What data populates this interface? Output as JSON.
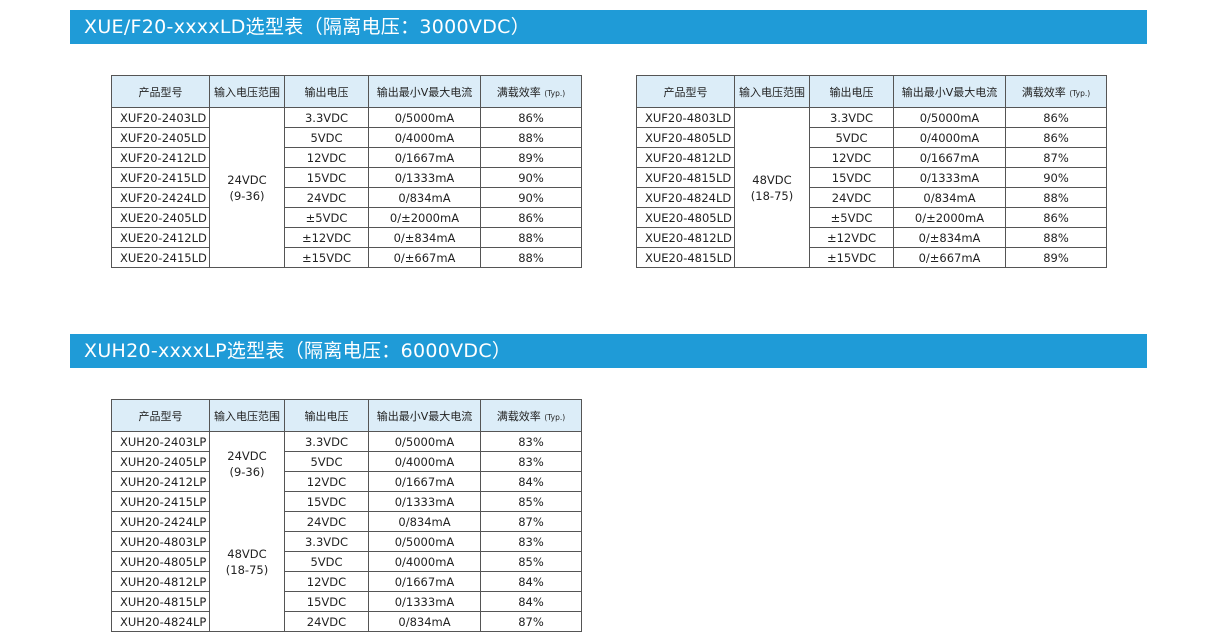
{
  "sections": [
    {
      "title": "XUE/F20-xxxxLD选型表（隔离电压：3000VDC）"
    },
    {
      "title": "XUH20-xxxxLP选型表（隔离电压：6000VDC）"
    }
  ],
  "headers": [
    "产品型号",
    "输入电压范围",
    "输出电压",
    "输出最小V最大电流",
    "满载效率",
    "(Typ.)"
  ],
  "tables": [
    {
      "groups": [
        {
          "vin": "24VDC\n(9-36)",
          "rows": [
            [
              "XUF20-2403LD",
              "3.3VDC",
              "0/5000mA",
              "86%"
            ],
            [
              "XUF20-2405LD",
              "5VDC",
              "0/4000mA",
              "88%"
            ],
            [
              "XUF20-2412LD",
              "12VDC",
              "0/1667mA",
              "89%"
            ],
            [
              "XUF20-2415LD",
              "15VDC",
              "0/1333mA",
              "90%"
            ],
            [
              "XUF20-2424LD",
              "24VDC",
              "0/834mA",
              "90%"
            ],
            [
              "XUE20-2405LD",
              "±5VDC",
              "0/±2000mA",
              "86%"
            ],
            [
              "XUE20-2412LD",
              "±12VDC",
              "0/±834mA",
              "88%"
            ],
            [
              "XUE20-2415LD",
              "±15VDC",
              "0/±667mA",
              "88%"
            ]
          ]
        }
      ]
    },
    {
      "groups": [
        {
          "vin": "48VDC\n(18-75)",
          "rows": [
            [
              "XUF20-4803LD",
              "3.3VDC",
              "0/5000mA",
              "86%"
            ],
            [
              "XUF20-4805LD",
              "5VDC",
              "0/4000mA",
              "86%"
            ],
            [
              "XUF20-4812LD",
              "12VDC",
              "0/1667mA",
              "87%"
            ],
            [
              "XUF20-4815LD",
              "15VDC",
              "0/1333mA",
              "90%"
            ],
            [
              "XUF20-4824LD",
              "24VDC",
              "0/834mA",
              "88%"
            ],
            [
              "XUE20-4805LD",
              "±5VDC",
              "0/±2000mA",
              "86%"
            ],
            [
              "XUE20-4812LD",
              "±12VDC",
              "0/±834mA",
              "88%"
            ],
            [
              "XUE20-4815LD",
              "±15VDC",
              "0/±667mA",
              "89%"
            ]
          ]
        }
      ]
    },
    {
      "groups": [
        {
          "vin": "24VDC\n(9-36)",
          "rows": [
            [
              "XUH20-2403LP",
              "3.3VDC",
              "0/5000mA",
              "83%"
            ],
            [
              "XUH20-2405LP",
              "5VDC",
              "0/4000mA",
              "83%"
            ],
            [
              "XUH20-2412LP",
              "12VDC",
              "0/1667mA",
              "84%"
            ],
            [
              "XUH20-2415LP",
              "15VDC",
              "0/1333mA",
              "85%"
            ],
            [
              "XUH20-2424LP",
              "24VDC",
              "0/834mA",
              "87%"
            ]
          ]
        },
        {
          "vin": "48VDC\n(18-75)",
          "rows": [
            [
              "XUH20-4803LP",
              "3.3VDC",
              "0/5000mA",
              "83%"
            ],
            [
              "XUH20-4805LP",
              "5VDC",
              "0/4000mA",
              "85%"
            ],
            [
              "XUH20-4812LP",
              "12VDC",
              "0/1667mA",
              "84%"
            ],
            [
              "XUH20-4815LP",
              "15VDC",
              "0/1333mA",
              "84%"
            ],
            [
              "XUH20-4824LP",
              "24VDC",
              "0/834mA",
              "87%"
            ]
          ]
        }
      ]
    }
  ],
  "colors": {
    "banner": "#1f9bd7",
    "header_bg": "#dcedf8"
  }
}
